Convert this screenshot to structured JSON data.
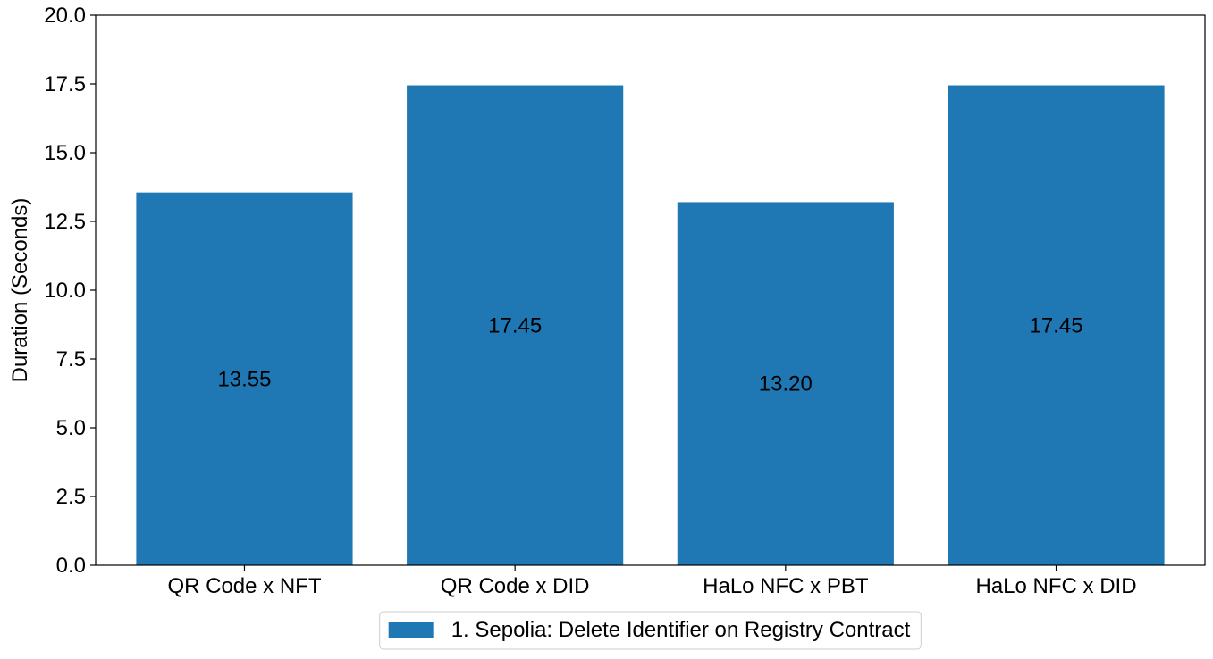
{
  "chart_data": {
    "type": "bar",
    "categories": [
      "QR Code x NFT",
      "QR Code x DID",
      "HaLo NFC x PBT",
      "HaLo NFC x DID"
    ],
    "series": [
      {
        "name": "1. Sepolia: Delete Identifier on Registry Contract",
        "values": [
          13.55,
          17.45,
          13.2,
          17.45
        ],
        "value_labels": [
          "13.55",
          "17.45",
          "13.20",
          "17.45"
        ],
        "color": "#1f77b4"
      }
    ],
    "title": "",
    "xlabel": "",
    "ylabel": "Duration (Seconds)",
    "ylim": [
      0,
      20
    ],
    "yticks": [
      0,
      2.5,
      5,
      7.5,
      10,
      12.5,
      15,
      17.5,
      20
    ],
    "ytick_labels": [
      "0.0",
      "2.5",
      "5.0",
      "7.5",
      "10.0",
      "12.5",
      "15.0",
      "17.5",
      "20.0"
    ],
    "grid": false,
    "legend_position": "bottom-center"
  }
}
